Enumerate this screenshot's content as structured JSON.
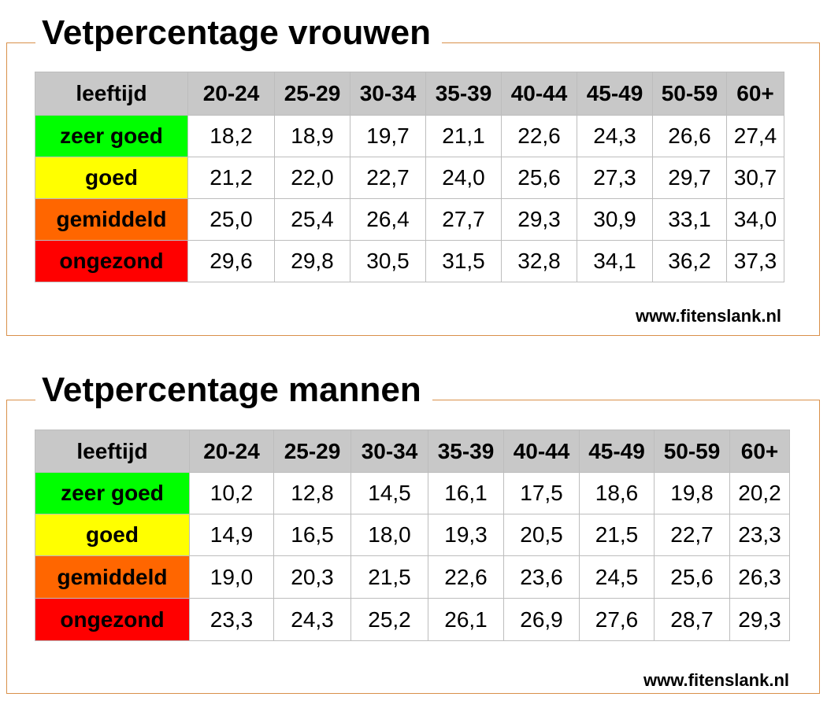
{
  "colors": {
    "zeer_goed": "#00ff00",
    "goed": "#ffff00",
    "gemiddeld": "#ff6600",
    "ongezond": "#ff0000",
    "header": "#c8c8c8",
    "frame": "#d9904a"
  },
  "tables": [
    {
      "title": "Vetpercentage vrouwen",
      "header_label": "leeftijd",
      "columns": [
        "20-24",
        "25-29",
        "30-34",
        "35-39",
        "40-44",
        "45-49",
        "50-59",
        "60+"
      ],
      "rows": [
        {
          "label": "zeer goed",
          "color": "#00ff00",
          "values": [
            "18,2",
            "18,9",
            "19,7",
            "21,1",
            "22,6",
            "24,3",
            "26,6",
            "27,4"
          ]
        },
        {
          "label": "goed",
          "color": "#ffff00",
          "values": [
            "21,2",
            "22,0",
            "22,7",
            "24,0",
            "25,6",
            "27,3",
            "29,7",
            "30,7"
          ]
        },
        {
          "label": "gemiddeld",
          "color": "#ff6600",
          "values": [
            "25,0",
            "25,4",
            "26,4",
            "27,7",
            "29,3",
            "30,9",
            "33,1",
            "34,0"
          ]
        },
        {
          "label": "ongezond",
          "color": "#ff0000",
          "values": [
            "29,6",
            "29,8",
            "30,5",
            "31,5",
            "32,8",
            "34,1",
            "36,2",
            "37,3"
          ]
        }
      ],
      "website": "www.fitenslank.nl"
    },
    {
      "title": "Vetpercentage mannen",
      "header_label": "leeftijd",
      "columns": [
        "20-24",
        "25-29",
        "30-34",
        "35-39",
        "40-44",
        "45-49",
        "50-59",
        "60+"
      ],
      "rows": [
        {
          "label": "zeer goed",
          "color": "#00ff00",
          "values": [
            "10,2",
            "12,8",
            "14,5",
            "16,1",
            "17,5",
            "18,6",
            "19,8",
            "20,2"
          ]
        },
        {
          "label": "goed",
          "color": "#ffff00",
          "values": [
            "14,9",
            "16,5",
            "18,0",
            "19,3",
            "20,5",
            "21,5",
            "22,7",
            "23,3"
          ]
        },
        {
          "label": "gemiddeld",
          "color": "#ff6600",
          "values": [
            "19,0",
            "20,3",
            "21,5",
            "22,6",
            "23,6",
            "24,5",
            "25,6",
            "26,3"
          ]
        },
        {
          "label": "ongezond",
          "color": "#ff0000",
          "values": [
            "23,3",
            "24,3",
            "25,2",
            "26,1",
            "26,9",
            "27,6",
            "28,7",
            "29,3"
          ]
        }
      ],
      "website": "www.fitenslank.nl"
    }
  ]
}
